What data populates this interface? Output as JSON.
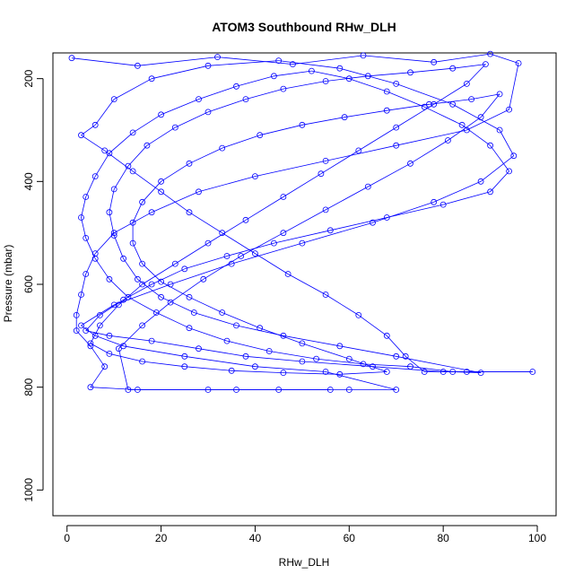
{
  "chart_data": {
    "type": "line",
    "title": "ATOM3 Southbound RHw_DLH",
    "xlabel": "RHw_DLH",
    "ylabel": "Pressure (mbar)",
    "xlim": [
      -3,
      104
    ],
    "ylim": [
      1050,
      150
    ],
    "y_reversed": true,
    "xticks": [
      0,
      20,
      40,
      60,
      80,
      100
    ],
    "yticks": [
      200,
      400,
      600,
      800,
      1000
    ],
    "grid": false,
    "line_color": "#0000ff",
    "marker": "open-circle",
    "series": [
      {
        "values_note": "",
        "points": [
          [
            1,
            160
          ],
          [
            15,
            175
          ],
          [
            32,
            158
          ],
          [
            48,
            172
          ],
          [
            63,
            155
          ],
          [
            78,
            168
          ],
          [
            90,
            152
          ],
          [
            96,
            170
          ],
          [
            94,
            260
          ],
          [
            85,
            300
          ],
          [
            70,
            330
          ],
          [
            55,
            360
          ],
          [
            40,
            390
          ],
          [
            28,
            420
          ],
          [
            18,
            460
          ],
          [
            10,
            500
          ],
          [
            6,
            540
          ],
          [
            4,
            580
          ],
          [
            3,
            620
          ],
          [
            2,
            660
          ],
          [
            2,
            690
          ],
          [
            5,
            720
          ],
          [
            8,
            760
          ],
          [
            5,
            800
          ],
          [
            15,
            805
          ],
          [
            30,
            805
          ],
          [
            45,
            805
          ],
          [
            60,
            805
          ],
          [
            70,
            805
          ],
          [
            55,
            770
          ],
          [
            40,
            760
          ],
          [
            25,
            740
          ],
          [
            12,
            720
          ],
          [
            6,
            700
          ],
          [
            3,
            680
          ],
          [
            10,
            640
          ],
          [
            22,
            600
          ],
          [
            35,
            560
          ],
          [
            50,
            520
          ],
          [
            65,
            480
          ],
          [
            78,
            440
          ],
          [
            88,
            400
          ],
          [
            95,
            350
          ],
          [
            92,
            300
          ],
          [
            82,
            250
          ],
          [
            70,
            210
          ],
          [
            58,
            180
          ],
          [
            45,
            165
          ],
          [
            30,
            175
          ],
          [
            18,
            200
          ],
          [
            10,
            240
          ],
          [
            6,
            290
          ],
          [
            3,
            310
          ],
          [
            8,
            340
          ],
          [
            14,
            380
          ],
          [
            20,
            420
          ],
          [
            26,
            460
          ],
          [
            33,
            500
          ],
          [
            40,
            540
          ],
          [
            47,
            580
          ],
          [
            55,
            620
          ],
          [
            62,
            660
          ],
          [
            68,
            700
          ],
          [
            72,
            740
          ],
          [
            76,
            770
          ],
          [
            85,
            770
          ],
          [
            99,
            770
          ],
          [
            80,
            770
          ],
          [
            65,
            760
          ],
          [
            50,
            750
          ],
          [
            38,
            740
          ],
          [
            28,
            725
          ],
          [
            18,
            710
          ],
          [
            9,
            700
          ],
          [
            4,
            690
          ],
          [
            7,
            660
          ],
          [
            12,
            630
          ],
          [
            18,
            600
          ],
          [
            25,
            570
          ],
          [
            34,
            545
          ],
          [
            44,
            520
          ],
          [
            56,
            495
          ],
          [
            68,
            470
          ],
          [
            80,
            445
          ],
          [
            90,
            420
          ],
          [
            94,
            380
          ],
          [
            90,
            330
          ],
          [
            84,
            290
          ],
          [
            76,
            255
          ],
          [
            68,
            225
          ],
          [
            60,
            200
          ],
          [
            52,
            185
          ],
          [
            44,
            195
          ],
          [
            36,
            215
          ],
          [
            28,
            240
          ],
          [
            20,
            270
          ],
          [
            14,
            305
          ],
          [
            9,
            345
          ],
          [
            6,
            390
          ],
          [
            4,
            430
          ],
          [
            3,
            470
          ],
          [
            4,
            510
          ],
          [
            6,
            550
          ],
          [
            9,
            590
          ],
          [
            13,
            625
          ],
          [
            19,
            655
          ],
          [
            26,
            685
          ],
          [
            34,
            710
          ],
          [
            43,
            730
          ],
          [
            53,
            745
          ],
          [
            63,
            755
          ],
          [
            73,
            760
          ],
          [
            82,
            770
          ],
          [
            88,
            772
          ],
          [
            70,
            740
          ],
          [
            58,
            720
          ],
          [
            46,
            700
          ],
          [
            36,
            680
          ],
          [
            27,
            655
          ],
          [
            20,
            625
          ],
          [
            15,
            590
          ],
          [
            12,
            550
          ],
          [
            10,
            505
          ],
          [
            9,
            460
          ],
          [
            10,
            415
          ],
          [
            13,
            370
          ],
          [
            17,
            330
          ],
          [
            23,
            295
          ],
          [
            30,
            265
          ],
          [
            38,
            240
          ],
          [
            46,
            220
          ],
          [
            55,
            205
          ],
          [
            64,
            195
          ],
          [
            73,
            188
          ],
          [
            82,
            180
          ],
          [
            89,
            172
          ],
          [
            85,
            210
          ],
          [
            78,
            250
          ],
          [
            70,
            295
          ],
          [
            62,
            340
          ],
          [
            54,
            385
          ],
          [
            46,
            430
          ],
          [
            38,
            475
          ],
          [
            30,
            520
          ],
          [
            23,
            560
          ],
          [
            16,
            600
          ],
          [
            11,
            640
          ],
          [
            7,
            680
          ],
          [
            5,
            715
          ],
          [
            9,
            735
          ],
          [
            16,
            750
          ],
          [
            25,
            760
          ],
          [
            35,
            768
          ],
          [
            46,
            772
          ],
          [
            58,
            775
          ],
          [
            68,
            770
          ],
          [
            60,
            745
          ],
          [
            50,
            715
          ],
          [
            41,
            685
          ],
          [
            33,
            655
          ],
          [
            26,
            625
          ],
          [
            20,
            595
          ],
          [
            16,
            560
          ],
          [
            14,
            520
          ],
          [
            14,
            480
          ],
          [
            16,
            440
          ],
          [
            20,
            400
          ],
          [
            26,
            365
          ],
          [
            33,
            335
          ],
          [
            41,
            310
          ],
          [
            50,
            290
          ],
          [
            59,
            275
          ],
          [
            68,
            262
          ],
          [
            77,
            250
          ],
          [
            86,
            240
          ],
          [
            92,
            230
          ],
          [
            88,
            275
          ],
          [
            81,
            320
          ],
          [
            73,
            365
          ],
          [
            64,
            410
          ],
          [
            55,
            455
          ],
          [
            46,
            500
          ],
          [
            37,
            545
          ],
          [
            29,
            590
          ],
          [
            22,
            635
          ],
          [
            16,
            680
          ],
          [
            11,
            725
          ],
          [
            13,
            805
          ],
          [
            36,
            805
          ],
          [
            56,
            805
          ]
        ]
      }
    ]
  }
}
